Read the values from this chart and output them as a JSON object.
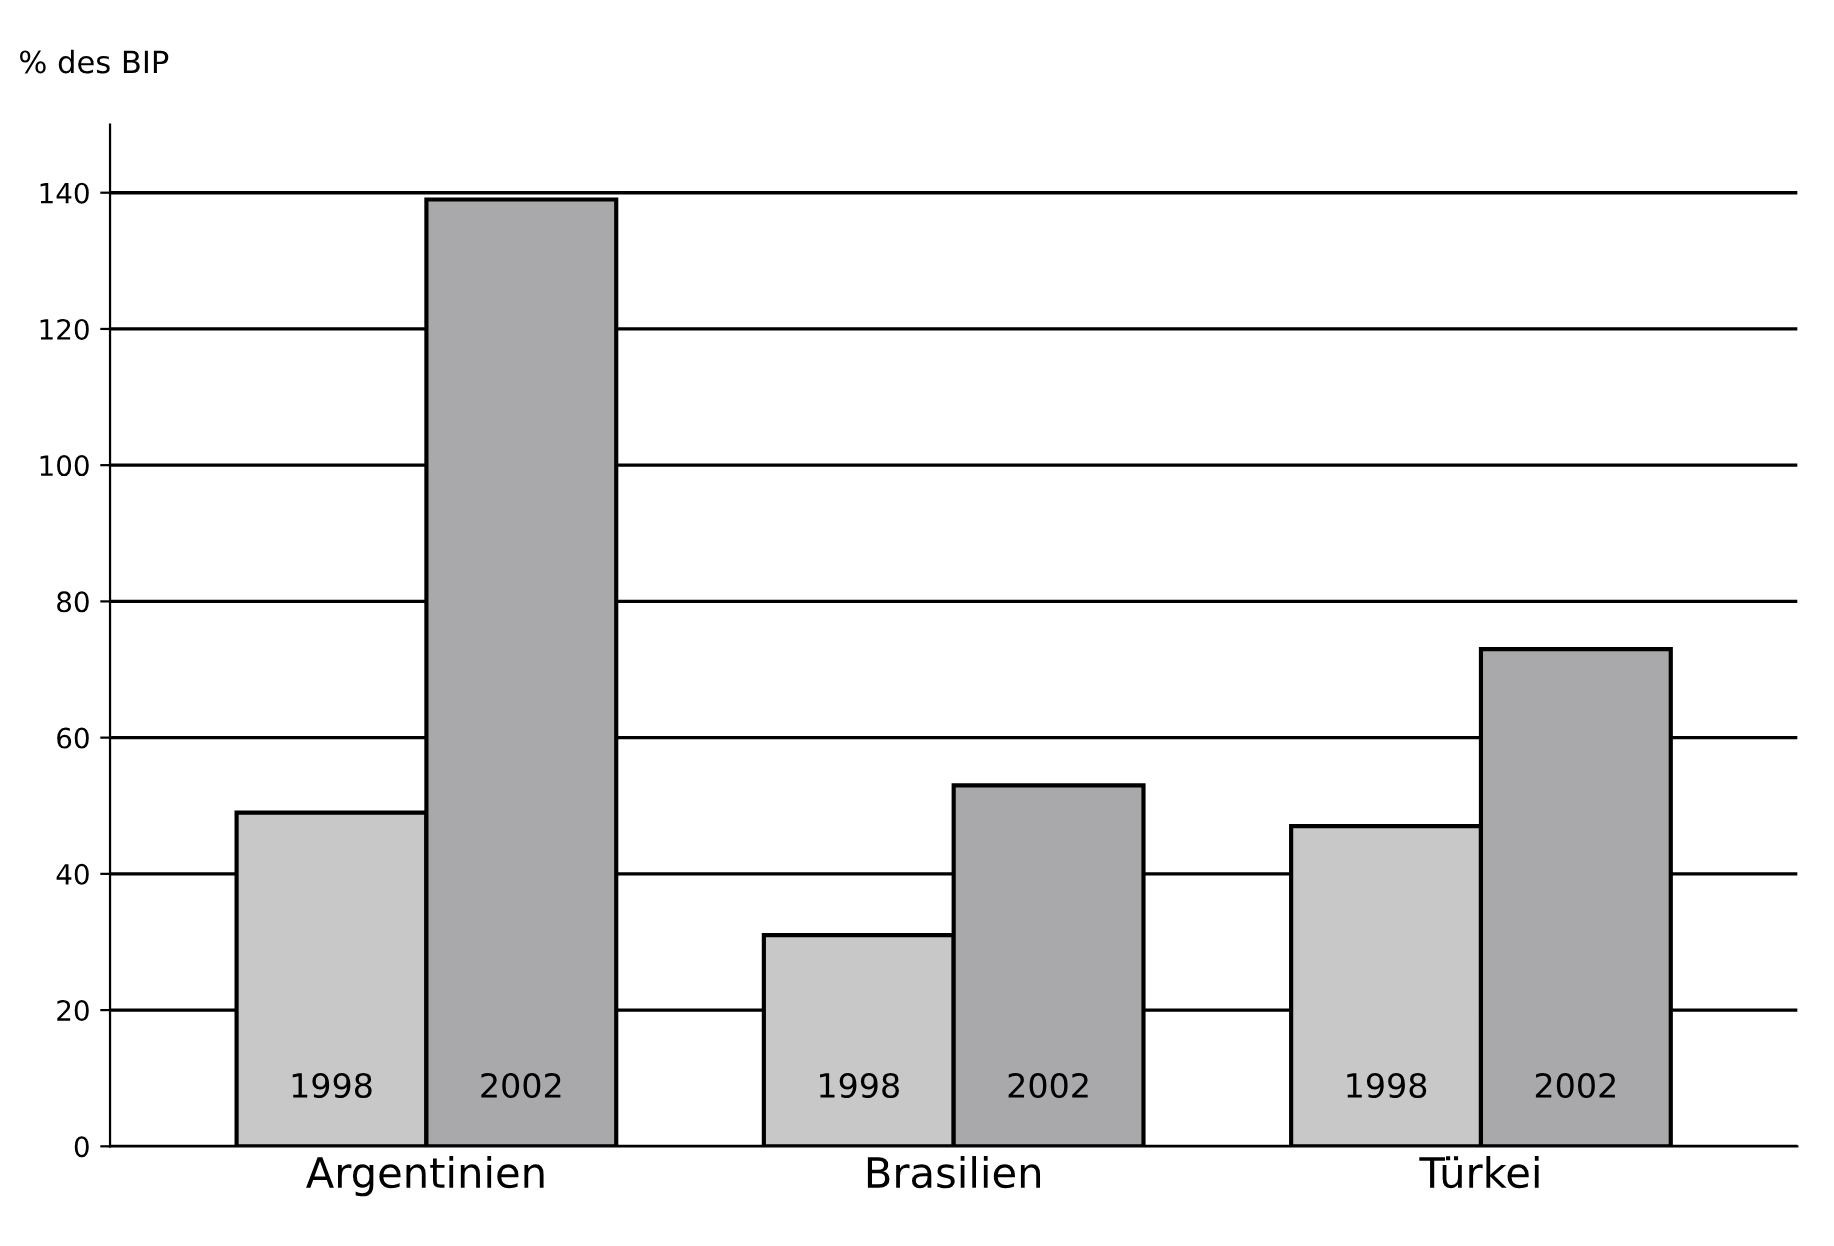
{
  "chart_data": {
    "type": "bar",
    "ylabel": "% des BIP",
    "categories": [
      "Argentinien",
      "Brasilien",
      "Türkei"
    ],
    "series": [
      {
        "name": "1998",
        "color": "#c8c8c8",
        "values": [
          49,
          31,
          47
        ]
      },
      {
        "name": "2002",
        "color": "#a9a9ab",
        "values": [
          139,
          53,
          73
        ]
      }
    ],
    "ylim": [
      0,
      150
    ],
    "yticks": [
      0,
      20,
      40,
      60,
      80,
      100,
      120,
      140
    ],
    "grid": "y",
    "legend": false
  }
}
